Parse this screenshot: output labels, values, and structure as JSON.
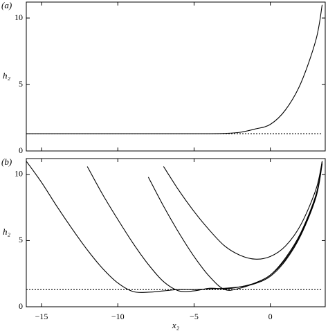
{
  "chart_data": [
    {
      "type": "line",
      "panel_label": "(a)",
      "ylabel": "h₂",
      "xlim": [
        -16,
        3.6
      ],
      "ylim": [
        0,
        11.2
      ],
      "xticks": [
        {
          "value": -15,
          "label": "−15"
        },
        {
          "value": -10,
          "label": "−10"
        },
        {
          "value": -5,
          "label": "−5"
        },
        0
      ],
      "yticks": [
        0,
        5,
        10
      ],
      "show_xtick_labels": false,
      "x": [
        -16,
        -15,
        -14,
        -13,
        -12,
        -11,
        -10,
        -9,
        -8,
        -7,
        -6,
        -5,
        -4,
        -3,
        -2,
        -1,
        0,
        1,
        2,
        3,
        3.4
      ],
      "series": [
        {
          "color": "#000000",
          "values": [
            1.3,
            1.3,
            1.3,
            1.3,
            1.3,
            1.3,
            1.3,
            1.3,
            1.3,
            1.3,
            1.3,
            1.3,
            1.3,
            1.32,
            1.4,
            1.65,
            2.0,
            3.1,
            5.1,
            8.4,
            11.0
          ]
        },
        {
          "color": "#000000",
          "dashed": true,
          "values": [
            1.3,
            1.3,
            1.3,
            1.3,
            1.3,
            1.3,
            1.3,
            1.3,
            1.3,
            1.3,
            1.3,
            1.3,
            1.3,
            1.3,
            1.3,
            1.3,
            1.3,
            1.3,
            1.3,
            1.3,
            1.3
          ]
        }
      ]
    },
    {
      "type": "line",
      "panel_label": "(b)",
      "ylabel": "h₂",
      "xlabel": "x₂",
      "xlim": [
        -16,
        3.6
      ],
      "ylim": [
        0,
        11.2
      ],
      "xticks": [
        {
          "value": -15,
          "label": "−15"
        },
        {
          "value": -10,
          "label": "−10"
        },
        {
          "value": -5,
          "label": "−5"
        },
        0
      ],
      "yticks": [
        0,
        5,
        10
      ],
      "show_xtick_labels": true,
      "x": [
        -16,
        -15,
        -14,
        -13,
        -12,
        -11,
        -10,
        -9,
        -8,
        -7,
        -6,
        -5,
        -4,
        -3,
        -2,
        -1,
        0,
        1,
        2,
        3,
        3.4
      ],
      "series": [
        {
          "color": "#000000",
          "values": [
            11.0,
            9.4,
            7.6,
            5.9,
            4.3,
            2.9,
            1.8,
            1.15,
            1.1,
            1.2,
            1.3,
            1.3,
            1.35,
            1.4,
            1.5,
            1.75,
            2.3,
            3.5,
            5.4,
            8.3,
            10.8
          ]
        },
        {
          "color": "#000000",
          "values": [
            null,
            null,
            null,
            null,
            10.6,
            8.5,
            6.6,
            4.8,
            3.2,
            1.9,
            1.2,
            1.2,
            1.4,
            1.35,
            1.5,
            1.8,
            2.4,
            3.6,
            5.5,
            8.4,
            10.9
          ]
        },
        {
          "color": "#000000",
          "values": [
            null,
            null,
            null,
            null,
            null,
            null,
            null,
            null,
            9.8,
            7.6,
            5.6,
            3.8,
            2.3,
            1.3,
            1.4,
            1.8,
            2.4,
            3.7,
            5.6,
            8.5,
            11.0
          ]
        },
        {
          "color": "#000000",
          "values": [
            null,
            null,
            null,
            null,
            null,
            null,
            null,
            null,
            null,
            10.6,
            8.8,
            7.2,
            5.8,
            4.6,
            3.9,
            3.6,
            3.8,
            4.6,
            6.2,
            8.9,
            11.0
          ]
        },
        {
          "color": "#000000",
          "dashed": true,
          "values": [
            1.3,
            1.3,
            1.3,
            1.3,
            1.3,
            1.3,
            1.3,
            1.3,
            1.3,
            1.3,
            1.3,
            1.3,
            1.3,
            1.3,
            1.3,
            1.3,
            1.3,
            1.3,
            1.3,
            1.3,
            1.3
          ]
        }
      ]
    }
  ]
}
